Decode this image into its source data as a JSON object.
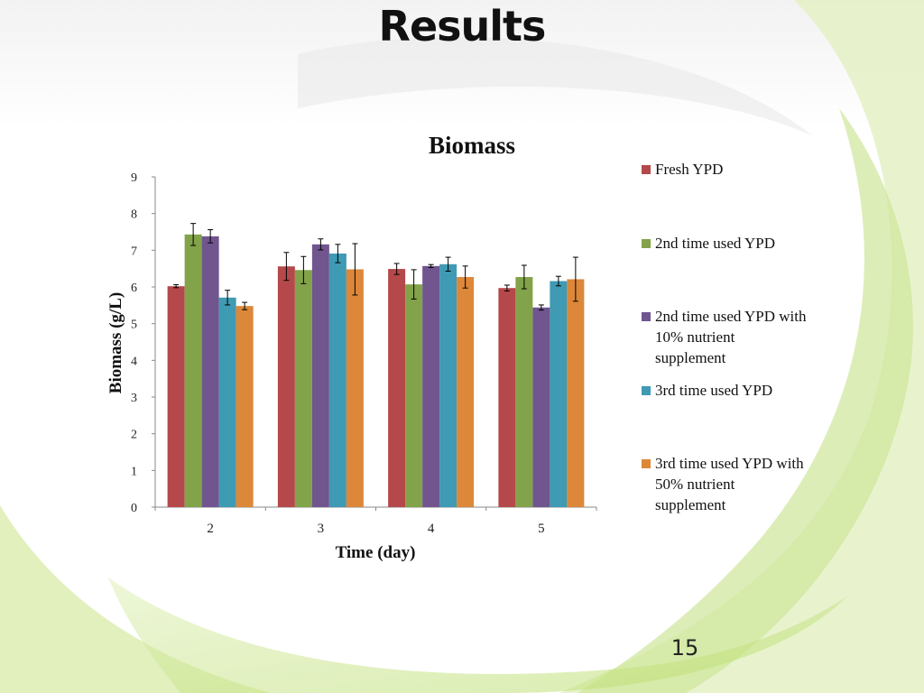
{
  "slide": {
    "title": "Results",
    "page_number": "15"
  },
  "chart_data": {
    "type": "bar",
    "title": "Biomass",
    "xlabel": "Time (day)",
    "ylabel": "Biomass (g/L)",
    "categories": [
      "2",
      "3",
      "4",
      "5"
    ],
    "ylim": [
      0,
      9
    ],
    "yticks": [
      "0",
      "1",
      "2",
      "3",
      "4",
      "5",
      "6",
      "7",
      "8",
      "9"
    ],
    "grid": false,
    "legend_position": "right",
    "series": [
      {
        "name": "Fresh YPD",
        "color": "#B5484A",
        "values": [
          6.02,
          6.56,
          6.49,
          5.97
        ],
        "errors": [
          0.04,
          0.38,
          0.15,
          0.08
        ]
      },
      {
        "name": "2nd time used YPD",
        "color": "#82A34A",
        "values": [
          7.43,
          6.46,
          6.07,
          6.27
        ],
        "errors": [
          0.3,
          0.37,
          0.4,
          0.32
        ]
      },
      {
        "name": "2nd time used YPD with\n10% nutrient\nsupplement",
        "color": "#70558F",
        "values": [
          7.38,
          7.16,
          6.57,
          5.44
        ],
        "errors": [
          0.18,
          0.15,
          0.04,
          0.07
        ]
      },
      {
        "name": "3rd time used YPD",
        "color": "#3F9AB3",
        "values": [
          5.71,
          6.91,
          6.62,
          6.16
        ],
        "errors": [
          0.2,
          0.25,
          0.19,
          0.13
        ]
      },
      {
        "name": "3rd time used YPD with\n50% nutrient\nsupplement",
        "color": "#DC8739",
        "values": [
          5.48,
          6.48,
          6.27,
          6.21
        ],
        "errors": [
          0.1,
          0.7,
          0.3,
          0.6
        ]
      }
    ]
  }
}
